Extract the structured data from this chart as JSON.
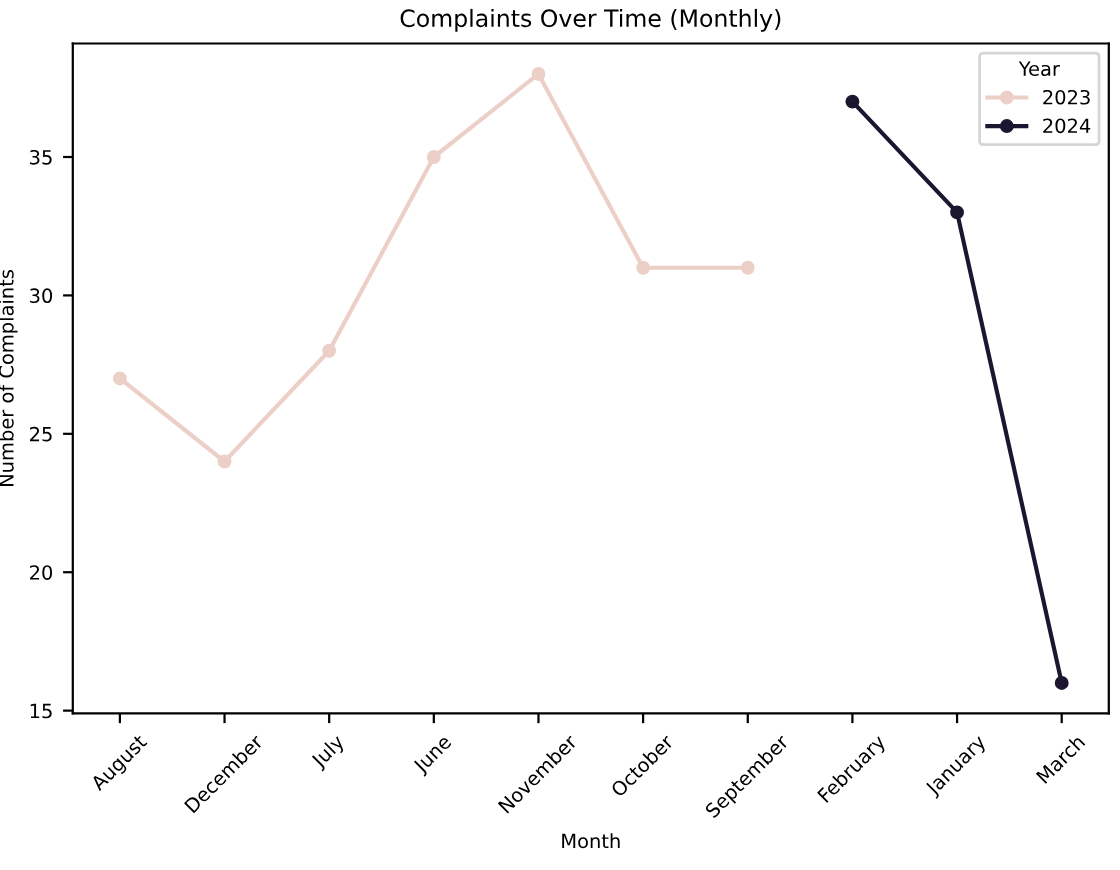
{
  "chart_data": {
    "type": "line",
    "title": "Complaints Over Time (Monthly)",
    "xlabel": "Month",
    "ylabel": "Number of Complaints",
    "legend_title": "Year",
    "categories": [
      "August",
      "December",
      "July",
      "June",
      "November",
      "October",
      "September",
      "February",
      "January",
      "March"
    ],
    "series": [
      {
        "name": "2023",
        "color": "#ecd0c8",
        "values": [
          27,
          24,
          28,
          35,
          38,
          31,
          31,
          null,
          null,
          null
        ]
      },
      {
        "name": "2024",
        "color": "#1d1631",
        "values": [
          null,
          null,
          null,
          null,
          null,
          null,
          null,
          37,
          33,
          16
        ]
      }
    ],
    "ylim": [
      14.9,
      39.1
    ],
    "yticks": [
      15,
      20,
      25,
      30,
      35
    ],
    "grid": false,
    "legend": "top right",
    "marker": "circle",
    "line_style": "solid"
  }
}
